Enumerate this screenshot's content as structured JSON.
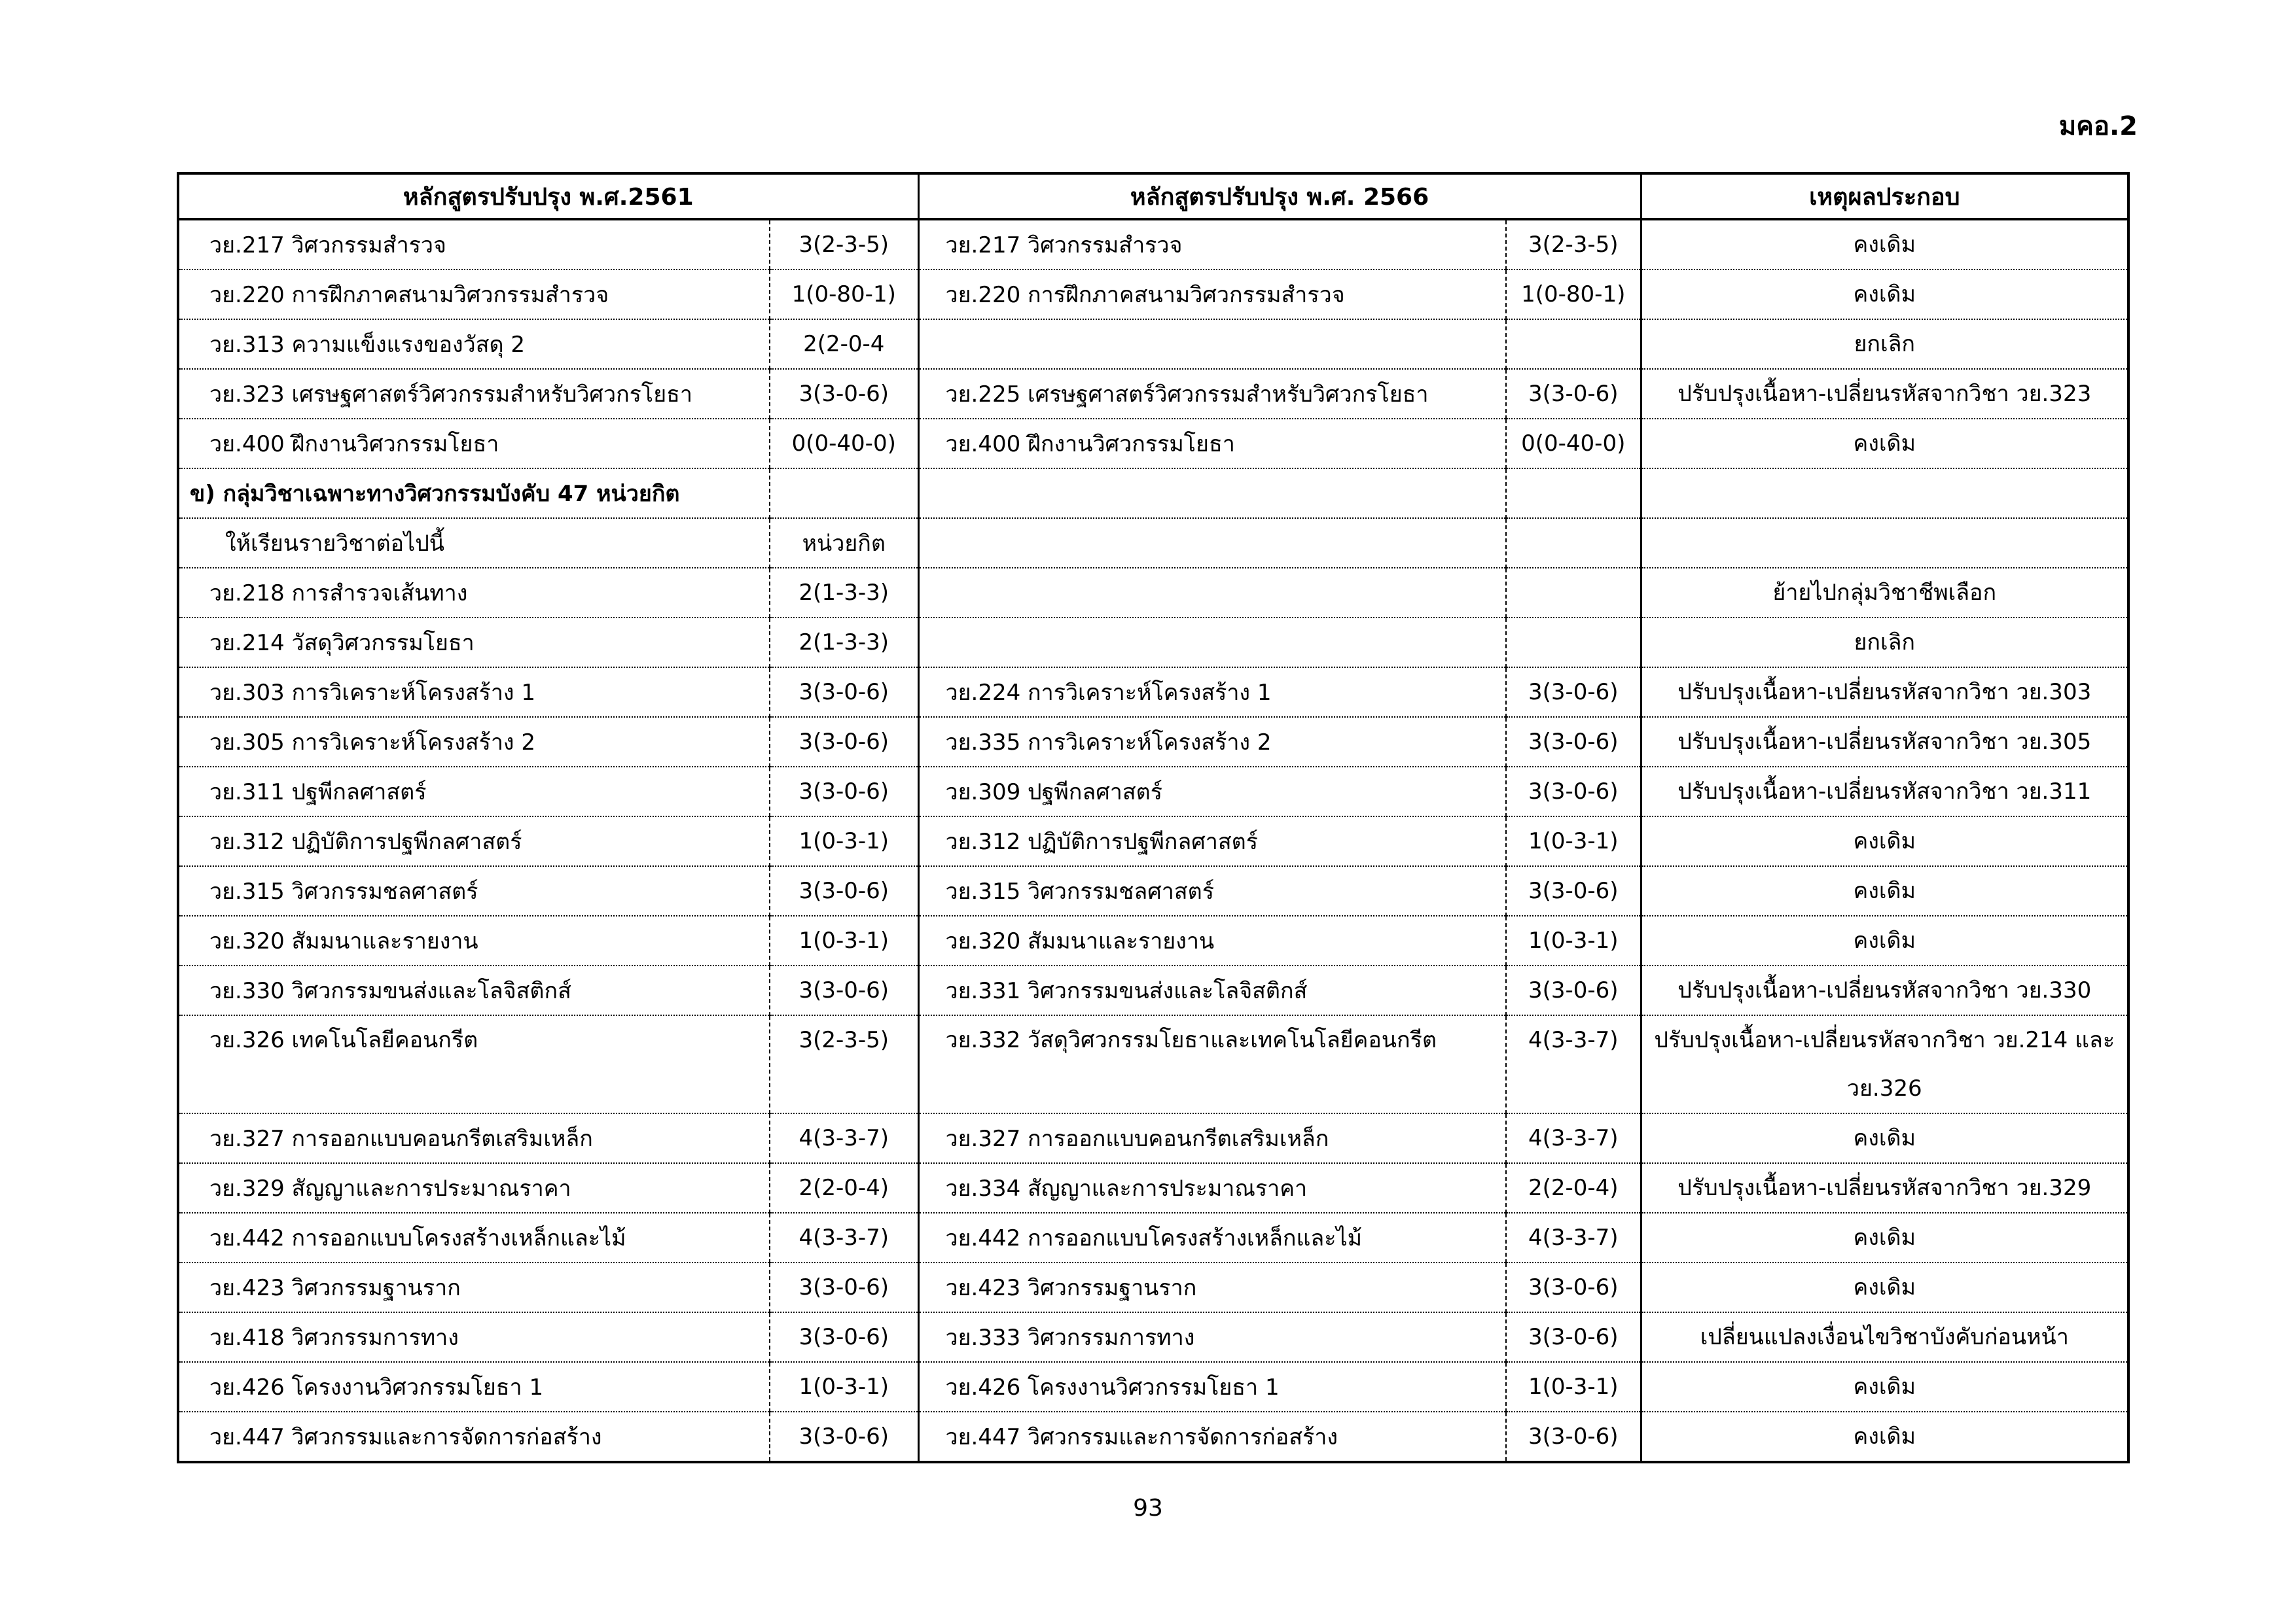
{
  "doc_code": "มคอ.2",
  "page_number": "93",
  "table": {
    "headers": [
      "หลักสูตรปรับปรุง พ.ศ.2561",
      "หลักสูตรปรับปรุง พ.ศ. 2566",
      "เหตุผลประกอบ"
    ],
    "rows": [
      {
        "old": "วย.217 วิศวกรรมสำรวจ",
        "old_cr": "3(2-3-5)",
        "new": "วย.217 วิศวกรรมสำรวจ",
        "new_cr": "3(2-3-5)",
        "reason": "คงเดิม"
      },
      {
        "old": "วย.220 การฝึกภาคสนามวิศวกรรมสำรวจ",
        "old_cr": "1(0-80-1)",
        "new": "วย.220 การฝึกภาคสนามวิศวกรรมสำรวจ",
        "new_cr": "1(0-80-1)",
        "reason": "คงเดิม"
      },
      {
        "old": "วย.313 ความแข็งแรงของวัสดุ 2",
        "old_cr": "2(2-0-4",
        "new": "",
        "new_cr": "",
        "reason": "ยกเลิก"
      },
      {
        "old": "วย.323 เศรษฐศาสตร์วิศวกรรมสำหรับวิศวกรโยธา",
        "old_cr": "3(3-0-6)",
        "new": "วย.225 เศรษฐศาสตร์วิศวกรรมสำหรับวิศวกรโยธา",
        "new_cr": "3(3-0-6)",
        "reason": "ปรับปรุงเนื้อหา-เปลี่ยนรหัสจากวิชา วย.323"
      },
      {
        "old": "วย.400 ฝึกงานวิศวกรรมโยธา",
        "old_cr": "0(0-40-0)",
        "new": "วย.400 ฝึกงานวิศวกรรมโยธา",
        "new_cr": "0(0-40-0)",
        "reason": "คงเดิม"
      },
      {
        "type": "section",
        "old": "ข)  กลุ่มวิชาเฉพาะทางวิศวกรรมบังคับ 47 หน่วยกิต",
        "old_cr": "",
        "new": "",
        "new_cr": "",
        "reason": ""
      },
      {
        "type": "indent",
        "old": "ให้เรียนรายวิชาต่อไปนี้",
        "old_cr": "หน่วยกิต",
        "new": "",
        "new_cr": "",
        "reason": ""
      },
      {
        "old": "วย.218 การสำรวจเส้นทาง",
        "old_cr": "2(1-3-3)",
        "new": "",
        "new_cr": "",
        "reason": "ย้ายไปกลุ่มวิชาชีพเลือก"
      },
      {
        "old": "วย.214 วัสดุวิศวกรรมโยธา",
        "old_cr": "2(1-3-3)",
        "new": "",
        "new_cr": "",
        "reason": "ยกเลิก"
      },
      {
        "old": "วย.303 การวิเคราะห์โครงสร้าง 1",
        "old_cr": "3(3-0-6)",
        "new": "วย.224 การวิเคราะห์โครงสร้าง 1",
        "new_cr": "3(3-0-6)",
        "reason": "ปรับปรุงเนื้อหา-เปลี่ยนรหัสจากวิชา วย.303"
      },
      {
        "old": "วย.305 การวิเคราะห์โครงสร้าง 2",
        "old_cr": "3(3-0-6)",
        "new": "วย.335 การวิเคราะห์โครงสร้าง 2",
        "new_cr": "3(3-0-6)",
        "reason": "ปรับปรุงเนื้อหา-เปลี่ยนรหัสจากวิชา วย.305"
      },
      {
        "old": "วย.311 ปฐพีกลศาสตร์",
        "old_cr": "3(3-0-6)",
        "new": "วย.309 ปฐพีกลศาสตร์",
        "new_cr": "3(3-0-6)",
        "reason": "ปรับปรุงเนื้อหา-เปลี่ยนรหัสจากวิชา วย.311"
      },
      {
        "old": "วย.312 ปฏิบัติการปฐพีกลศาสตร์",
        "old_cr": "1(0-3-1)",
        "new": "วย.312 ปฏิบัติการปฐพีกลศาสตร์",
        "new_cr": "1(0-3-1)",
        "reason": "คงเดิม"
      },
      {
        "old": "วย.315 วิศวกรรมชลศาสตร์",
        "old_cr": "3(3-0-6)",
        "new": "วย.315 วิศวกรรมชลศาสตร์",
        "new_cr": "3(3-0-6)",
        "reason": "คงเดิม"
      },
      {
        "old": "วย.320 สัมมนาและรายงาน",
        "old_cr": "1(0-3-1)",
        "new": "วย.320 สัมมนาและรายงาน",
        "new_cr": "1(0-3-1)",
        "reason": "คงเดิม"
      },
      {
        "old": "วย.330 วิศวกรรมขนส่งและโลจิสติกส์",
        "old_cr": "3(3-0-6)",
        "new": "วย.331 วิศวกรรมขนส่งและโลจิสติกส์",
        "new_cr": "3(3-0-6)",
        "reason": "ปรับปรุงเนื้อหา-เปลี่ยนรหัสจากวิชา วย.330"
      },
      {
        "type": "double",
        "old": "วย.326 เทคโนโลยีคอนกรีต",
        "old_cr": "3(2-3-5)",
        "new": "วย.332 วัสดุวิศวกรรมโยธาและเทคโนโลยีคอนกรีต",
        "new_cr": "4(3-3-7)",
        "reason": "ปรับปรุงเนื้อหา-เปลี่ยนรหัสจากวิชา วย.214 และ วย.326"
      },
      {
        "old": "วย.327 การออกแบบคอนกรีตเสริมเหล็ก",
        "old_cr": "4(3-3-7)",
        "new": "วย.327 การออกแบบคอนกรีตเสริมเหล็ก",
        "new_cr": "4(3-3-7)",
        "reason": "คงเดิม"
      },
      {
        "old": "วย.329 สัญญาและการประมาณราคา",
        "old_cr": "2(2-0-4)",
        "new": "วย.334 สัญญาและการประมาณราคา",
        "new_cr": "2(2-0-4)",
        "reason": "ปรับปรุงเนื้อหา-เปลี่ยนรหัสจากวิชา วย.329"
      },
      {
        "old": "วย.442 การออกแบบโครงสร้างเหล็กและไม้",
        "old_cr": "4(3-3-7)",
        "new": "วย.442 การออกแบบโครงสร้างเหล็กและไม้",
        "new_cr": "4(3-3-7)",
        "reason": "คงเดิม"
      },
      {
        "old": "วย.423 วิศวกรรมฐานราก",
        "old_cr": "3(3-0-6)",
        "new": "วย.423 วิศวกรรมฐานราก",
        "new_cr": "3(3-0-6)",
        "reason": "คงเดิม"
      },
      {
        "old": "วย.418 วิศวกรรมการทาง",
        "old_cr": "3(3-0-6)",
        "new": "วย.333 วิศวกรรมการทาง",
        "new_cr": "3(3-0-6)",
        "reason": "เปลี่ยนแปลงเงื่อนไขวิชาบังคับก่อนหน้า"
      },
      {
        "old": "วย.426 โครงงานวิศวกรรมโยธา 1",
        "old_cr": "1(0-3-1)",
        "new": "วย.426 โครงงานวิศวกรรมโยธา 1",
        "new_cr": "1(0-3-1)",
        "reason": "คงเดิม"
      },
      {
        "old": "วย.447 วิศวกรรมและการจัดการก่อสร้าง",
        "old_cr": "3(3-0-6)",
        "new": "วย.447 วิศวกรรมและการจัดการก่อสร้าง",
        "new_cr": "3(3-0-6)",
        "reason": "คงเดิม"
      }
    ]
  }
}
